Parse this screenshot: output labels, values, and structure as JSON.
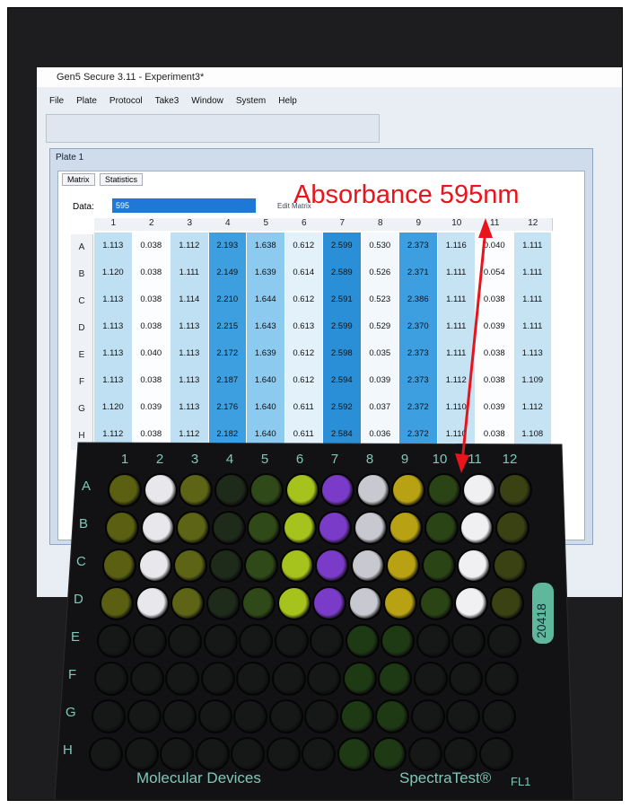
{
  "window": {
    "title": "Gen5 Secure 3.11 - Experiment3*",
    "menu": [
      "File",
      "Plate",
      "Protocol",
      "Take3",
      "Window",
      "System",
      "Help"
    ]
  },
  "plate_window": {
    "title": "Plate 1",
    "tabs": [
      "Matrix",
      "Statistics"
    ],
    "data_label": "Data:",
    "data_value": "595",
    "edit_matrix": "Edit Matrix",
    "columns": [
      "1",
      "2",
      "3",
      "4",
      "5",
      "6",
      "7",
      "8",
      "9",
      "10",
      "11",
      "12"
    ],
    "rows": [
      {
        "label": "A",
        "values": [
          "1.113",
          "0.038",
          "1.112",
          "2.193",
          "1.638",
          "0.612",
          "2.599",
          "0.530",
          "2.373",
          "1.116",
          "0.040",
          "1.111"
        ]
      },
      {
        "label": "B",
        "values": [
          "1.120",
          "0.038",
          "1.111",
          "2.149",
          "1.639",
          "0.614",
          "2.589",
          "0.526",
          "2.371",
          "1.111",
          "0.054",
          "1.111"
        ]
      },
      {
        "label": "C",
        "values": [
          "1.113",
          "0.038",
          "1.114",
          "2.210",
          "1.644",
          "0.612",
          "2.591",
          "0.523",
          "2.386",
          "1.111",
          "0.038",
          "1.111"
        ]
      },
      {
        "label": "D",
        "values": [
          "1.113",
          "0.038",
          "1.113",
          "2.215",
          "1.643",
          "0.613",
          "2.599",
          "0.529",
          "2.370",
          "1.111",
          "0.039",
          "1.111"
        ]
      },
      {
        "label": "E",
        "values": [
          "1.113",
          "0.040",
          "1.113",
          "2.172",
          "1.639",
          "0.612",
          "2.598",
          "0.035",
          "2.373",
          "1.111",
          "0.038",
          "1.113"
        ]
      },
      {
        "label": "F",
        "values": [
          "1.113",
          "0.038",
          "1.113",
          "2.187",
          "1.640",
          "0.612",
          "2.594",
          "0.039",
          "2.373",
          "1.112",
          "0.038",
          "1.109"
        ]
      },
      {
        "label": "G",
        "values": [
          "1.120",
          "0.039",
          "1.113",
          "2.176",
          "1.640",
          "0.611",
          "2.592",
          "0.037",
          "2.372",
          "1.110",
          "0.039",
          "1.112"
        ]
      },
      {
        "label": "H",
        "values": [
          "1.112",
          "0.038",
          "1.112",
          "2.182",
          "1.640",
          "0.611",
          "2.584",
          "0.036",
          "2.372",
          "1.110",
          "0.038",
          "1.108"
        ]
      }
    ]
  },
  "annotation": "Absorbance 595nm",
  "plate": {
    "columns": [
      "1",
      "2",
      "3",
      "4",
      "5",
      "6",
      "7",
      "8",
      "9",
      "10",
      "11",
      "12"
    ],
    "rows": [
      "A",
      "B",
      "C",
      "D",
      "E",
      "F",
      "G",
      "H"
    ],
    "code": "20418",
    "brand": "Molecular Devices",
    "product": "SpectraTest®",
    "model": "FL1"
  }
}
